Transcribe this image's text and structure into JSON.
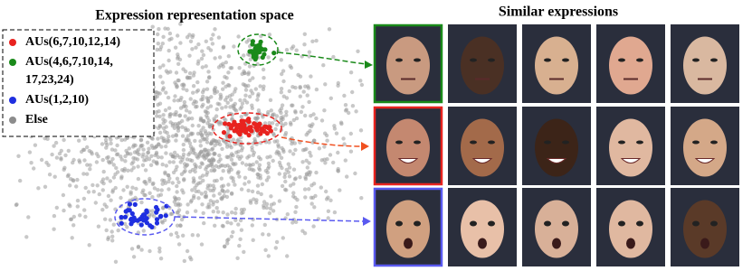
{
  "left": {
    "title": "Expression representation space",
    "legend": [
      {
        "lines": [
          "AUs(6,7,10,12,14)"
        ],
        "color": "#e8231f"
      },
      {
        "lines": [
          "AUs(4,6,7,10,14,",
          "17,23,24)"
        ],
        "color": "#1a8a1a"
      },
      {
        "lines": [
          "AUs(1,2,10)"
        ],
        "color": "#1f2fe0"
      },
      {
        "lines": [
          "Else"
        ],
        "color": "#8c8c8c"
      }
    ]
  },
  "right": {
    "title": "Similar expressions"
  }
}
